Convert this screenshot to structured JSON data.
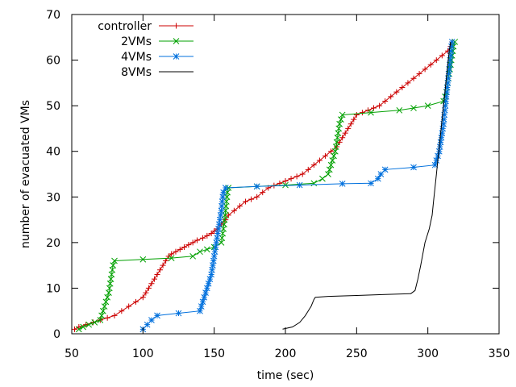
{
  "chart_data": {
    "type": "line",
    "title": "",
    "xlabel": "time (sec)",
    "ylabel": "number of evacuated VMs",
    "xlim": [
      50,
      350
    ],
    "ylim": [
      0,
      70
    ],
    "xticks": [
      50,
      100,
      150,
      200,
      250,
      300,
      350
    ],
    "yticks": [
      0,
      10,
      20,
      30,
      40,
      50,
      60,
      70
    ],
    "grid": false,
    "legend_position": "top-left",
    "series": [
      {
        "name": "controller",
        "color": "#cc0000",
        "marker": "plus",
        "points": [
          [
            52,
            1
          ],
          [
            55,
            1.5
          ],
          [
            60,
            2
          ],
          [
            65,
            2.5
          ],
          [
            70,
            3
          ],
          [
            75,
            3.5
          ],
          [
            80,
            4
          ],
          [
            85,
            5
          ],
          [
            90,
            6
          ],
          [
            95,
            7
          ],
          [
            100,
            8
          ],
          [
            102,
            9
          ],
          [
            104,
            10
          ],
          [
            106,
            11
          ],
          [
            108,
            12
          ],
          [
            110,
            13
          ],
          [
            112,
            14
          ],
          [
            114,
            15
          ],
          [
            116,
            16
          ],
          [
            118,
            17
          ],
          [
            120,
            17.5
          ],
          [
            123,
            18
          ],
          [
            126,
            18.5
          ],
          [
            129,
            19
          ],
          [
            132,
            19.5
          ],
          [
            135,
            20
          ],
          [
            138,
            20.5
          ],
          [
            142,
            21
          ],
          [
            145,
            21.5
          ],
          [
            148,
            22
          ],
          [
            150,
            22.5
          ],
          [
            152,
            23
          ],
          [
            155,
            24
          ],
          [
            158,
            25
          ],
          [
            160,
            26
          ],
          [
            164,
            27
          ],
          [
            168,
            28
          ],
          [
            172,
            29
          ],
          [
            176,
            29.5
          ],
          [
            180,
            30
          ],
          [
            184,
            31
          ],
          [
            188,
            32
          ],
          [
            192,
            32.5
          ],
          [
            196,
            33
          ],
          [
            200,
            33.5
          ],
          [
            204,
            34
          ],
          [
            208,
            34.5
          ],
          [
            212,
            35
          ],
          [
            216,
            36
          ],
          [
            220,
            37
          ],
          [
            224,
            38
          ],
          [
            228,
            39
          ],
          [
            232,
            40
          ],
          [
            236,
            41
          ],
          [
            238,
            42
          ],
          [
            240,
            43
          ],
          [
            242,
            44
          ],
          [
            244,
            45
          ],
          [
            246,
            46
          ],
          [
            248,
            47
          ],
          [
            250,
            48
          ],
          [
            254,
            48.5
          ],
          [
            258,
            49
          ],
          [
            262,
            49.5
          ],
          [
            266,
            50
          ],
          [
            270,
            51
          ],
          [
            274,
            52
          ],
          [
            278,
            53
          ],
          [
            282,
            54
          ],
          [
            286,
            55
          ],
          [
            290,
            56
          ],
          [
            294,
            57
          ],
          [
            298,
            58
          ],
          [
            302,
            59
          ],
          [
            306,
            60
          ],
          [
            310,
            61
          ],
          [
            314,
            62
          ],
          [
            316,
            63
          ],
          [
            317,
            64
          ]
        ]
      },
      {
        "name": "2VMs",
        "color": "#00a000",
        "marker": "x",
        "points": [
          [
            55,
            1
          ],
          [
            58,
            1.5
          ],
          [
            62,
            2
          ],
          [
            66,
            2.5
          ],
          [
            70,
            3
          ],
          [
            71,
            4
          ],
          [
            72,
            5
          ],
          [
            73,
            6
          ],
          [
            74,
            7
          ],
          [
            75,
            8
          ],
          [
            76,
            9
          ],
          [
            76.5,
            10
          ],
          [
            77,
            11
          ],
          [
            77.5,
            12
          ],
          [
            78,
            13
          ],
          [
            78.5,
            14
          ],
          [
            79,
            15
          ],
          [
            80,
            16
          ],
          [
            100,
            16.3
          ],
          [
            120,
            16.6
          ],
          [
            135,
            17
          ],
          [
            140,
            18
          ],
          [
            145,
            18.5
          ],
          [
            150,
            19
          ],
          [
            155,
            20
          ],
          [
            155.5,
            21
          ],
          [
            156,
            22
          ],
          [
            156.5,
            23
          ],
          [
            157,
            24
          ],
          [
            157.3,
            25
          ],
          [
            157.6,
            26
          ],
          [
            158,
            27
          ],
          [
            158.3,
            28
          ],
          [
            158.6,
            29
          ],
          [
            159,
            30
          ],
          [
            159.3,
            31
          ],
          [
            160,
            32
          ],
          [
            180,
            32.3
          ],
          [
            200,
            32.6
          ],
          [
            220,
            33
          ],
          [
            226,
            34
          ],
          [
            230,
            35
          ],
          [
            231,
            36
          ],
          [
            232,
            37
          ],
          [
            233,
            38
          ],
          [
            234,
            39
          ],
          [
            235,
            40
          ],
          [
            235.5,
            41
          ],
          [
            236,
            42
          ],
          [
            236.5,
            43
          ],
          [
            237,
            44
          ],
          [
            237.5,
            45
          ],
          [
            238,
            46
          ],
          [
            239,
            47
          ],
          [
            240,
            48
          ],
          [
            260,
            48.5
          ],
          [
            280,
            49
          ],
          [
            290,
            49.5
          ],
          [
            300,
            50
          ],
          [
            311,
            51
          ],
          [
            312,
            52
          ],
          [
            313,
            53
          ],
          [
            313.5,
            54
          ],
          [
            314,
            55
          ],
          [
            314.5,
            56
          ],
          [
            315,
            57
          ],
          [
            315.5,
            58
          ],
          [
            316,
            59
          ],
          [
            316.5,
            60
          ],
          [
            317,
            61
          ],
          [
            317.5,
            62
          ],
          [
            318,
            63
          ],
          [
            319,
            64
          ]
        ]
      },
      {
        "name": "4VMs",
        "color": "#0070dd",
        "marker": "star",
        "points": [
          [
            100,
            1
          ],
          [
            103,
            2
          ],
          [
            106,
            3
          ],
          [
            110,
            4
          ],
          [
            125,
            4.5
          ],
          [
            140,
            5
          ],
          [
            141,
            6
          ],
          [
            142,
            7
          ],
          [
            143,
            8
          ],
          [
            144,
            9
          ],
          [
            145,
            10
          ],
          [
            146,
            11
          ],
          [
            147,
            12
          ],
          [
            148,
            13
          ],
          [
            148.5,
            14
          ],
          [
            149,
            15
          ],
          [
            149.5,
            16
          ],
          [
            150,
            17
          ],
          [
            150.5,
            18
          ],
          [
            151,
            19
          ],
          [
            151.5,
            20
          ],
          [
            152,
            21
          ],
          [
            152.5,
            22
          ],
          [
            153,
            23
          ],
          [
            153.5,
            24
          ],
          [
            154,
            25
          ],
          [
            154.5,
            26
          ],
          [
            155,
            27
          ],
          [
            155.3,
            28
          ],
          [
            155.6,
            29
          ],
          [
            156,
            30
          ],
          [
            156.5,
            31
          ],
          [
            158,
            32
          ],
          [
            180,
            32.3
          ],
          [
            210,
            32.6
          ],
          [
            240,
            32.9
          ],
          [
            260,
            33
          ],
          [
            265,
            34
          ],
          [
            267,
            35
          ],
          [
            270,
            36
          ],
          [
            290,
            36.5
          ],
          [
            305,
            37
          ],
          [
            306,
            38
          ],
          [
            307,
            39
          ],
          [
            308,
            40
          ],
          [
            308.5,
            41
          ],
          [
            309,
            42
          ],
          [
            309.5,
            43
          ],
          [
            310,
            44
          ],
          [
            310.5,
            45
          ],
          [
            311,
            46
          ],
          [
            311.3,
            47
          ],
          [
            311.6,
            48
          ],
          [
            312,
            49
          ],
          [
            312.3,
            50
          ],
          [
            312.6,
            51
          ],
          [
            313,
            52
          ],
          [
            313.3,
            53
          ],
          [
            313.6,
            54
          ],
          [
            314,
            55
          ],
          [
            314.3,
            56
          ],
          [
            314.6,
            57
          ],
          [
            315,
            58
          ],
          [
            315.3,
            59
          ],
          [
            315.6,
            60
          ],
          [
            316,
            61
          ],
          [
            316.3,
            62
          ],
          [
            316.6,
            63
          ],
          [
            317,
            64
          ]
        ]
      },
      {
        "name": "8VMs",
        "color": "#000000",
        "marker": "none",
        "points": [
          [
            198,
            1
          ],
          [
            205,
            1.5
          ],
          [
            210,
            2.5
          ],
          [
            214,
            4
          ],
          [
            218,
            6
          ],
          [
            220,
            7.5
          ],
          [
            221,
            8
          ],
          [
            230,
            8.2
          ],
          [
            250,
            8.4
          ],
          [
            270,
            8.6
          ],
          [
            288,
            8.8
          ],
          [
            291,
            9.5
          ],
          [
            293,
            12
          ],
          [
            295,
            15
          ],
          [
            298,
            20
          ],
          [
            301,
            23
          ],
          [
            303,
            26
          ],
          [
            304,
            29
          ],
          [
            305,
            32
          ],
          [
            306,
            35
          ],
          [
            307,
            38
          ],
          [
            308,
            41
          ],
          [
            309,
            44
          ],
          [
            310,
            47
          ],
          [
            311,
            50
          ],
          [
            312,
            53
          ],
          [
            313,
            56
          ],
          [
            314,
            59
          ],
          [
            315,
            62
          ],
          [
            316,
            64
          ]
        ]
      }
    ]
  }
}
